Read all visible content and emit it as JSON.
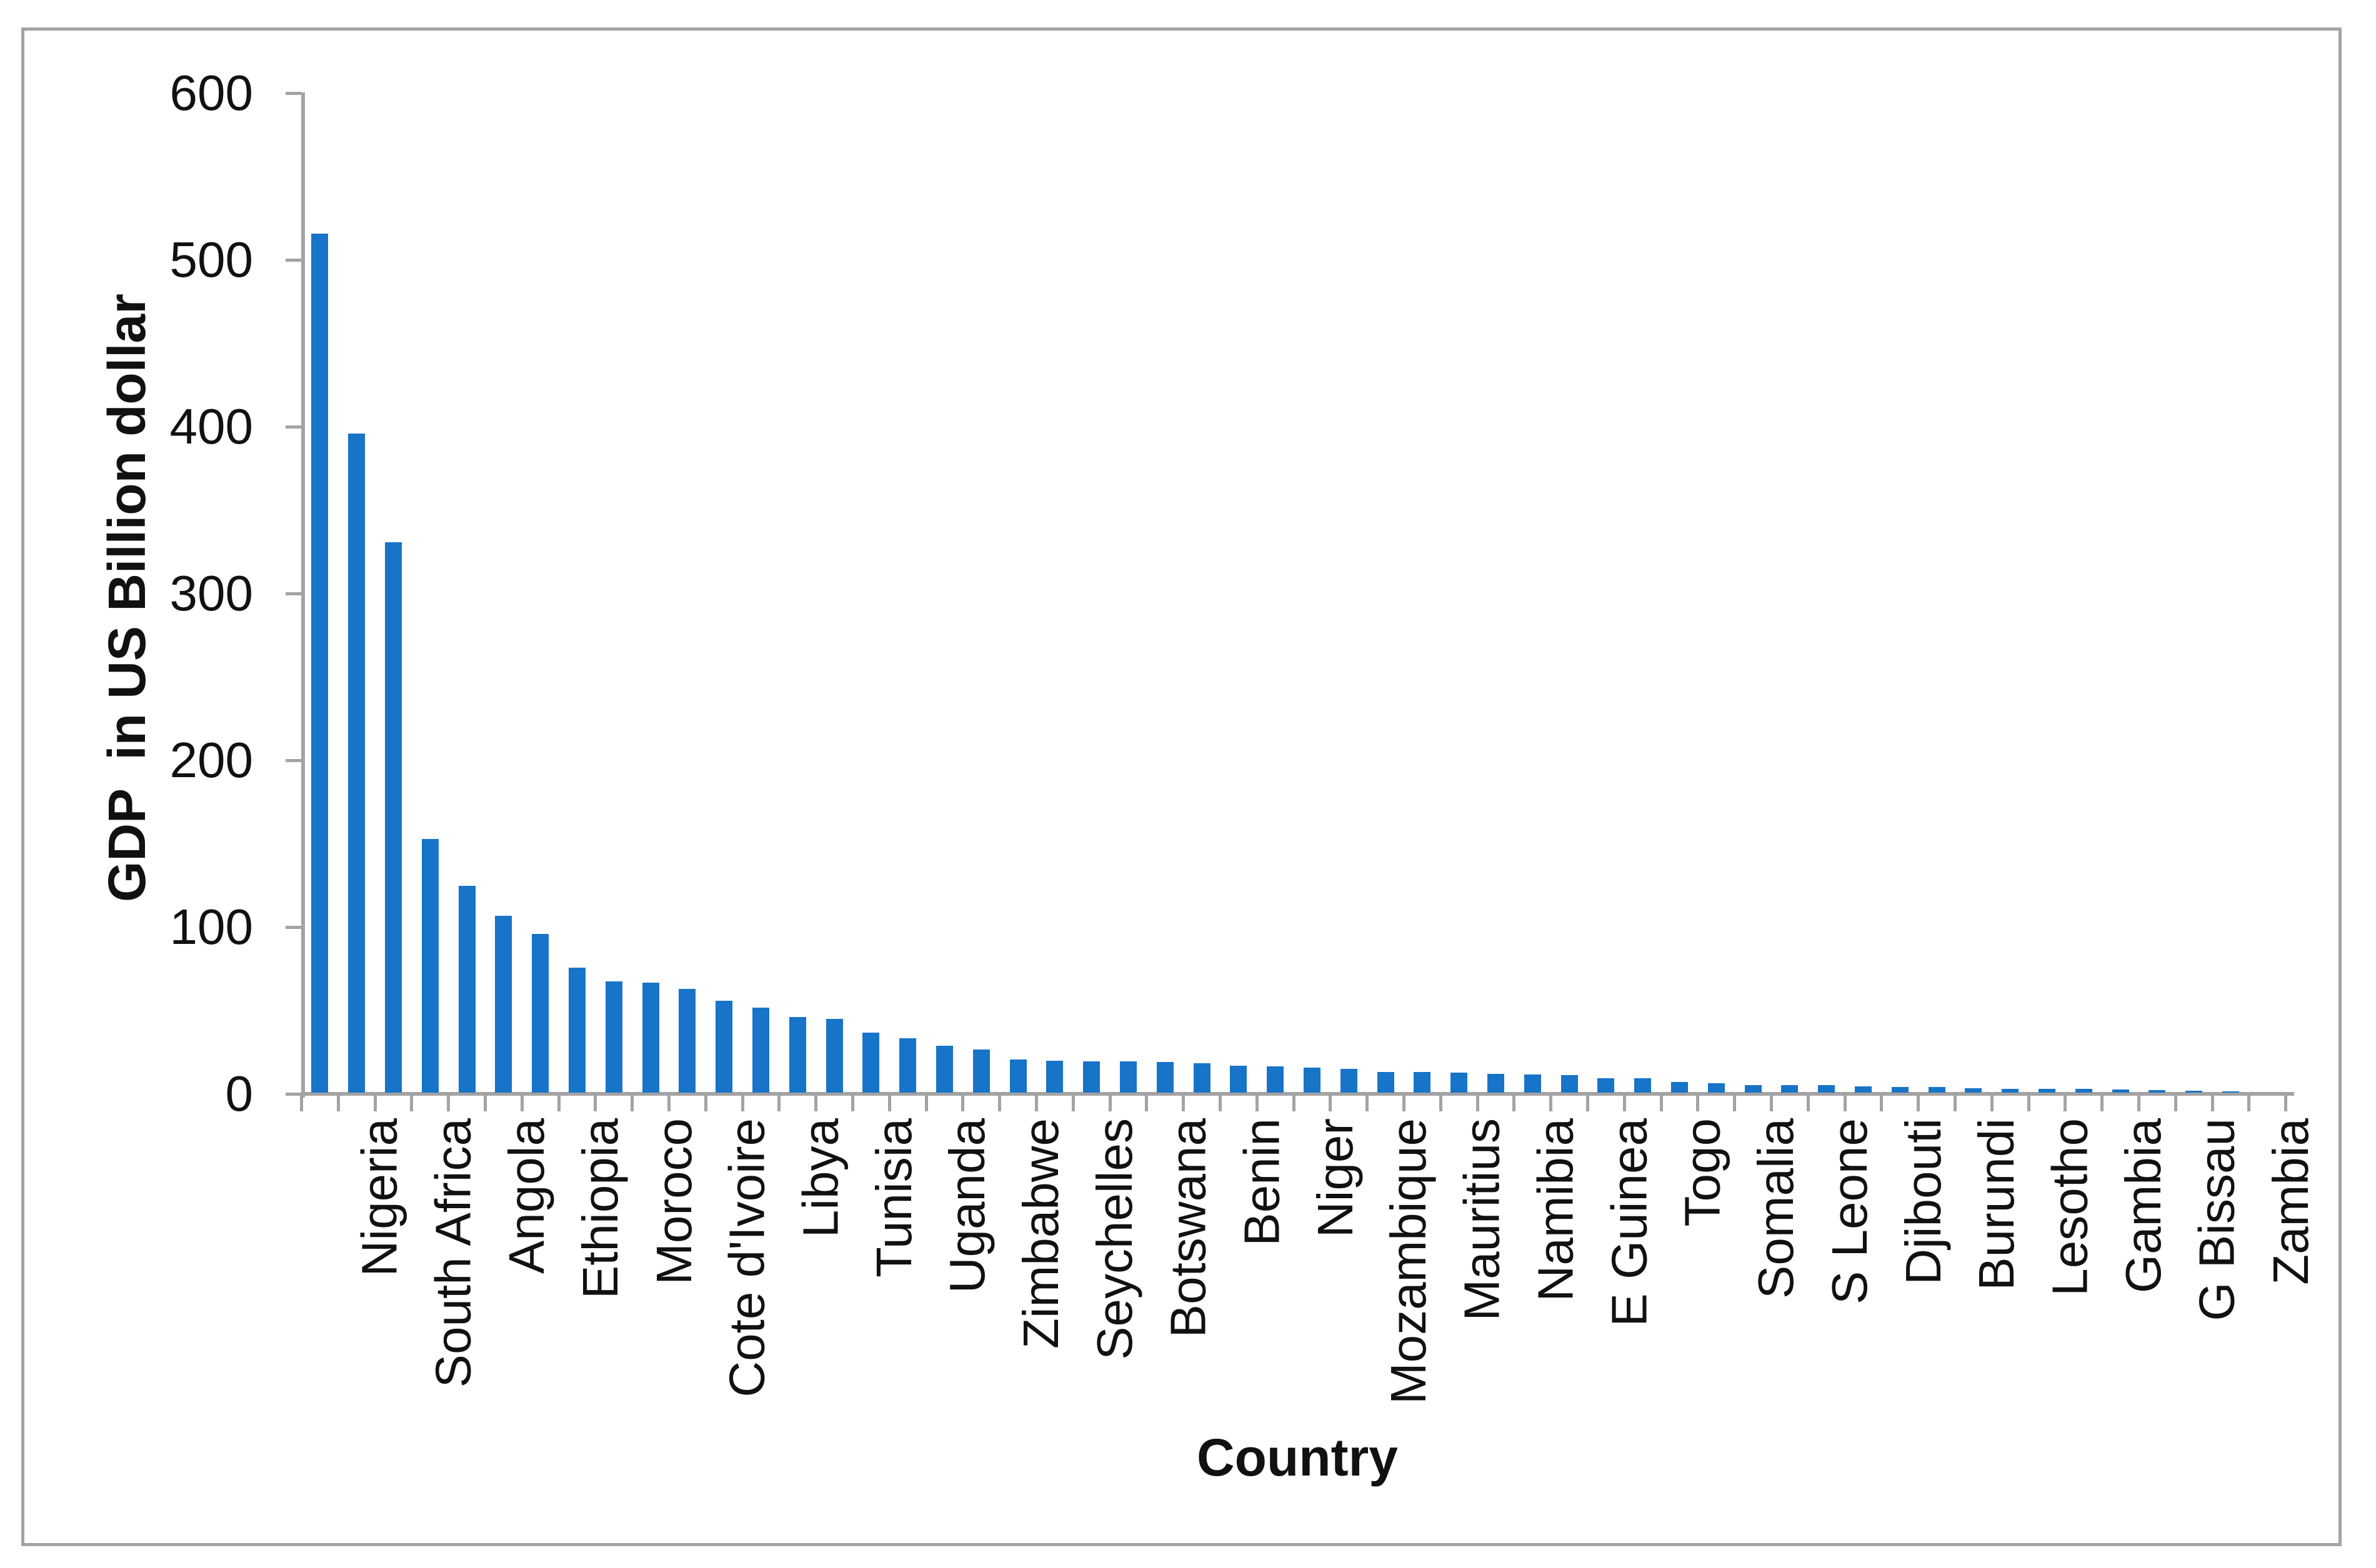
{
  "chart_data": {
    "type": "bar",
    "title": "",
    "xlabel": "Country",
    "ylabel": "GDP  in US Billion dollar",
    "ylim": [
      0,
      600
    ],
    "yticks": [
      0,
      100,
      200,
      300,
      400,
      500,
      600
    ],
    "grid": false,
    "legend": false,
    "bar_color": "#1774c8",
    "axis_color": "#a3a3a3",
    "frame_color": "#a3a3a3",
    "x_label_interval": 2,
    "bars": [
      {
        "label": "Nigeria",
        "value": 515
      },
      {
        "label": "",
        "value": 395
      },
      {
        "label": "South Africa",
        "value": 330
      },
      {
        "label": "",
        "value": 152
      },
      {
        "label": "Angola",
        "value": 124
      },
      {
        "label": "",
        "value": 106
      },
      {
        "label": "Ethiopia",
        "value": 95
      },
      {
        "label": "",
        "value": 75
      },
      {
        "label": "Moroco",
        "value": 66.5
      },
      {
        "label": "",
        "value": 65.8
      },
      {
        "label": "Cote d'Ivoire",
        "value": 62
      },
      {
        "label": "",
        "value": 55
      },
      {
        "label": "Libya",
        "value": 51
      },
      {
        "label": "",
        "value": 45.3
      },
      {
        "label": "Tunisia",
        "value": 44.3
      },
      {
        "label": "",
        "value": 36
      },
      {
        "label": "Uganda",
        "value": 32.5
      },
      {
        "label": "",
        "value": 28.2
      },
      {
        "label": "Zimbabwe",
        "value": 26
      },
      {
        "label": "",
        "value": 19.8
      },
      {
        "label": "Seychelles",
        "value": 19.0
      },
      {
        "label": "",
        "value": 18.8
      },
      {
        "label": "Botswana",
        "value": 18.7
      },
      {
        "label": "",
        "value": 18.4
      },
      {
        "label": "Benin",
        "value": 17.6
      },
      {
        "label": "",
        "value": 16.1
      },
      {
        "label": "Niger",
        "value": 15.7
      },
      {
        "label": "",
        "value": 14.8
      },
      {
        "label": "Mozambique",
        "value": 14.1
      },
      {
        "label": "",
        "value": 12.5
      },
      {
        "label": "Mauritius",
        "value": 12.2
      },
      {
        "label": "",
        "value": 12.0
      },
      {
        "label": "Namibia",
        "value": 11.3
      },
      {
        "label": "",
        "value": 10.8
      },
      {
        "label": "E Guinea",
        "value": 10.6
      },
      {
        "label": "",
        "value": 8.8
      },
      {
        "label": "Togo",
        "value": 8.6
      },
      {
        "label": "",
        "value": 6.3
      },
      {
        "label": "Somalia",
        "value": 5.5
      },
      {
        "label": "",
        "value": 4.5
      },
      {
        "label": "S Leone",
        "value": 4.4
      },
      {
        "label": "",
        "value": 4.4
      },
      {
        "label": "Djibouti",
        "value": 3.9
      },
      {
        "label": "",
        "value": 3.5
      },
      {
        "label": "Burundi",
        "value": 3.3
      },
      {
        "label": "",
        "value": 2.8
      },
      {
        "label": "Lesotho",
        "value": 2.4
      },
      {
        "label": "",
        "value": 2.2
      },
      {
        "label": "Gambia",
        "value": 2.1
      },
      {
        "label": "",
        "value": 2.0
      },
      {
        "label": "G Bissau",
        "value": 1.6
      },
      {
        "label": "",
        "value": 1.1
      },
      {
        "label": "Zambia",
        "value": 0.9
      },
      {
        "label": "",
        "value": 0
      }
    ]
  }
}
